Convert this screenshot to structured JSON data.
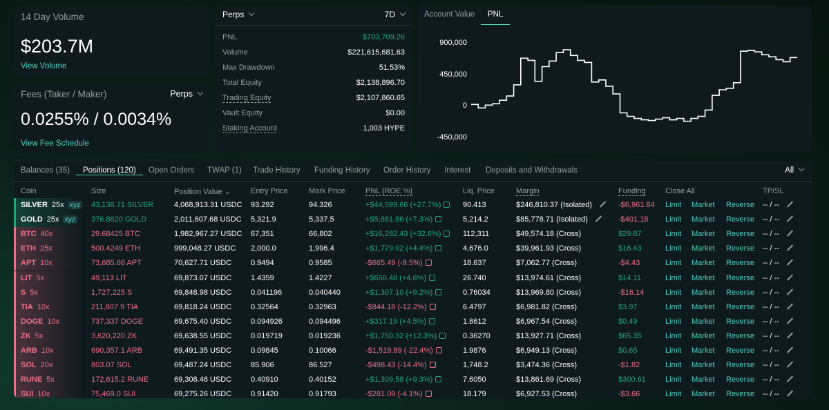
{
  "volume": {
    "label": "14 Day Volume",
    "value": "$203.7M",
    "link": "View Volume"
  },
  "fees": {
    "label": "Fees (Taker / Maker)",
    "selector": "Perps",
    "value": "0.0255% / 0.0034%",
    "link": "View Fee Schedule"
  },
  "stats": {
    "selector": "Perps",
    "range": "7D",
    "rows": [
      {
        "key": "PNL",
        "value": "$703,709.26"
      },
      {
        "key": "Volume",
        "value": "$221,615,681.63"
      },
      {
        "key": "Max Drawdown",
        "value": "51.53%"
      },
      {
        "key": "Total Equity",
        "value": "$2,138,896.70"
      },
      {
        "key": "Trading Equity",
        "value": "$2,107,860.65"
      },
      {
        "key": "Vault Equity",
        "value": "$0.00"
      },
      {
        "key": "Staking Account",
        "value": "1,003 HYPE"
      }
    ]
  },
  "chart": {
    "tabs": [
      "Account Value",
      "PNL"
    ],
    "active_tab": "PNL",
    "y_ticks": [
      "900,000",
      "450,000",
      "0",
      "-450,000"
    ]
  },
  "chart_data": {
    "type": "line",
    "title": "PNL",
    "xlabel": "",
    "ylabel": "",
    "ylim": [
      -450000,
      900000
    ],
    "y_ticks": [
      900000,
      450000,
      0,
      -450000
    ],
    "values": [
      20000,
      -30000,
      10000,
      30000,
      80000,
      140000,
      300000,
      680000,
      650000,
      350000,
      560000,
      640000,
      760000,
      800000,
      720000,
      650000,
      620000,
      340000,
      370000,
      280000,
      170000,
      -100000,
      -150000,
      -180000,
      -200000,
      -210000,
      -190000,
      -170000,
      -200000,
      -180000,
      -220000,
      -180000,
      -150000,
      -60000,
      150000,
      230000,
      250000,
      330000,
      780000,
      790000,
      770000,
      730000,
      700000,
      660000,
      630000,
      690000
    ]
  },
  "table": {
    "tabs": [
      "Balances (35)",
      "Positions (120)",
      "Open Orders",
      "TWAP (1)",
      "Trade History",
      "Funding History",
      "Order History",
      "Interest",
      "Deposits and Withdrawals"
    ],
    "active_tab": "Positions (120)",
    "filter": "All",
    "headers": [
      "Coin",
      "Size",
      "Position Value",
      "Entry Price",
      "Mark Price",
      "PNL (ROE %)",
      "Liq. Price",
      "Margin",
      "Funding",
      "Close All",
      "TP/SL"
    ],
    "actions": [
      "Limit",
      "Market",
      "Reverse"
    ],
    "tpsl_value": "-- / --",
    "rows": [
      {
        "coin": "SILVER",
        "lev": "25x",
        "dex": "xyz",
        "side": "long",
        "size": "43,136.71 SILVER",
        "value": "4,068,913.31 USDC",
        "entry": "93.292",
        "mark": "94.326",
        "pnl": "+$44,599.66 (+27.7%)",
        "liq": "90.413",
        "margin": "$246,810.37 (Isolated)",
        "funding": "-$6,961.84"
      },
      {
        "coin": "GOLD",
        "lev": "25x",
        "dex": "xyz",
        "side": "long",
        "size": "376.8820 GOLD",
        "value": "2,011,607.68 USDC",
        "entry": "5,321.9",
        "mark": "5,337.5",
        "pnl": "+$5,881.86 (+7.3%)",
        "liq": "5,214.2",
        "margin": "$85,778.71 (Isolated)",
        "funding": "-$401.18"
      },
      {
        "coin": "BTC",
        "lev": "40x",
        "dex": "",
        "side": "short",
        "size": "29.68425 BTC",
        "value": "1,982,967.27 USDC",
        "entry": "67,351",
        "mark": "66,802",
        "pnl": "+$16,282.43 (+32.6%)",
        "liq": "112,311",
        "margin": "$49,574.18 (Cross)",
        "funding": "$29.87"
      },
      {
        "coin": "ETH",
        "lev": "25x",
        "dex": "",
        "side": "short",
        "size": "500.4249 ETH",
        "value": "999,048.27 USDC",
        "entry": "2,000.0",
        "mark": "1,996.4",
        "pnl": "+$1,779.02 (+4.4%)",
        "liq": "4,676.0",
        "margin": "$39,961.93 (Cross)",
        "funding": "$16.43"
      },
      {
        "coin": "APT",
        "lev": "10x",
        "dex": "",
        "side": "short",
        "size": "73,685.66 APT",
        "value": "70,627.71 USDC",
        "entry": "0.9494",
        "mark": "0.9585",
        "pnl": "-$665.49 (-9.5%)",
        "liq": "18.637",
        "margin": "$7,062.77 (Cross)",
        "funding": "-$4.43"
      },
      {
        "coin": "LIT",
        "lev": "5x",
        "dex": "",
        "side": "short",
        "size": "49,113 LIT",
        "value": "69,873.07 USDC",
        "entry": "1.4359",
        "mark": "1.4227",
        "pnl": "+$650.48 (+4.6%)",
        "liq": "26.740",
        "margin": "$13,974.61 (Cross)",
        "funding": "$14.11"
      },
      {
        "coin": "S",
        "lev": "5x",
        "dex": "",
        "side": "short",
        "size": "1,727,225 S",
        "value": "69,848.98 USDC",
        "entry": "0.041196",
        "mark": "0.040440",
        "pnl": "+$1,307.10 (+9.2%)",
        "liq": "0.76034",
        "margin": "$13,969.80 (Cross)",
        "funding": "-$16.14"
      },
      {
        "coin": "TIA",
        "lev": "10x",
        "dex": "",
        "side": "short",
        "size": "211,807.9 TIA",
        "value": "69,818.24 USDC",
        "entry": "0.32564",
        "mark": "0.32963",
        "pnl": "-$844.18 (-12.2%)",
        "liq": "6.4797",
        "margin": "$6,981.82 (Cross)",
        "funding": "$3.97"
      },
      {
        "coin": "DOGE",
        "lev": "10x",
        "dex": "",
        "side": "short",
        "size": "737,337 DOGE",
        "value": "69,675.40 USDC",
        "entry": "0.094926",
        "mark": "0.094496",
        "pnl": "+$317.19 (+4.5%)",
        "liq": "1.8612",
        "margin": "$6,967.54 (Cross)",
        "funding": "$0.49"
      },
      {
        "coin": "ZK",
        "lev": "5x",
        "dex": "",
        "side": "short",
        "size": "3,620,220 ZK",
        "value": "69,638.55 USDC",
        "entry": "0.019719",
        "mark": "0.019236",
        "pnl": "+$1,750.32 (+12.3%)",
        "liq": "0.36270",
        "margin": "$13,927.71 (Cross)",
        "funding": "$65.35"
      },
      {
        "coin": "ARB",
        "lev": "10x",
        "dex": "",
        "side": "short",
        "size": "690,357.1 ARB",
        "value": "69,491.35 USDC",
        "entry": "0.09845",
        "mark": "0.10066",
        "pnl": "-$1,519.89 (-22.4%)",
        "liq": "1.9876",
        "margin": "$6,949.13 (Cross)",
        "funding": "$0.65"
      },
      {
        "coin": "SOL",
        "lev": "20x",
        "dex": "",
        "side": "short",
        "size": "803.07 SOL",
        "value": "69,487.24 USDC",
        "entry": "85.906",
        "mark": "86.527",
        "pnl": "-$498.43 (-14.4%)",
        "liq": "1,748.2",
        "margin": "$3,474.36 (Cross)",
        "funding": "-$1.82"
      },
      {
        "coin": "RUNE",
        "lev": "5x",
        "dex": "",
        "side": "short",
        "size": "172,615.2 RUNE",
        "value": "69,308.46 USDC",
        "entry": "0.40910",
        "mark": "0.40152",
        "pnl": "+$1,309.58 (+9.3%)",
        "liq": "7.6050",
        "margin": "$13,861.69 (Cross)",
        "funding": "$300.61"
      },
      {
        "coin": "SUI",
        "lev": "10x",
        "dex": "",
        "side": "short",
        "size": "75,469.0 SUI",
        "value": "69,275.26 USDC",
        "entry": "0.91420",
        "mark": "0.91793",
        "pnl": "-$281.09 (-4.1%)",
        "liq": "18.179",
        "margin": "$6,927.53 (Cross)",
        "funding": "-$3.66"
      }
    ]
  },
  "colors": {
    "accent": "#50d2c1",
    "positive": "#1fa67d",
    "negative": "#ed7088",
    "panel": "#0f1a1f",
    "muted": "#949e9c"
  }
}
